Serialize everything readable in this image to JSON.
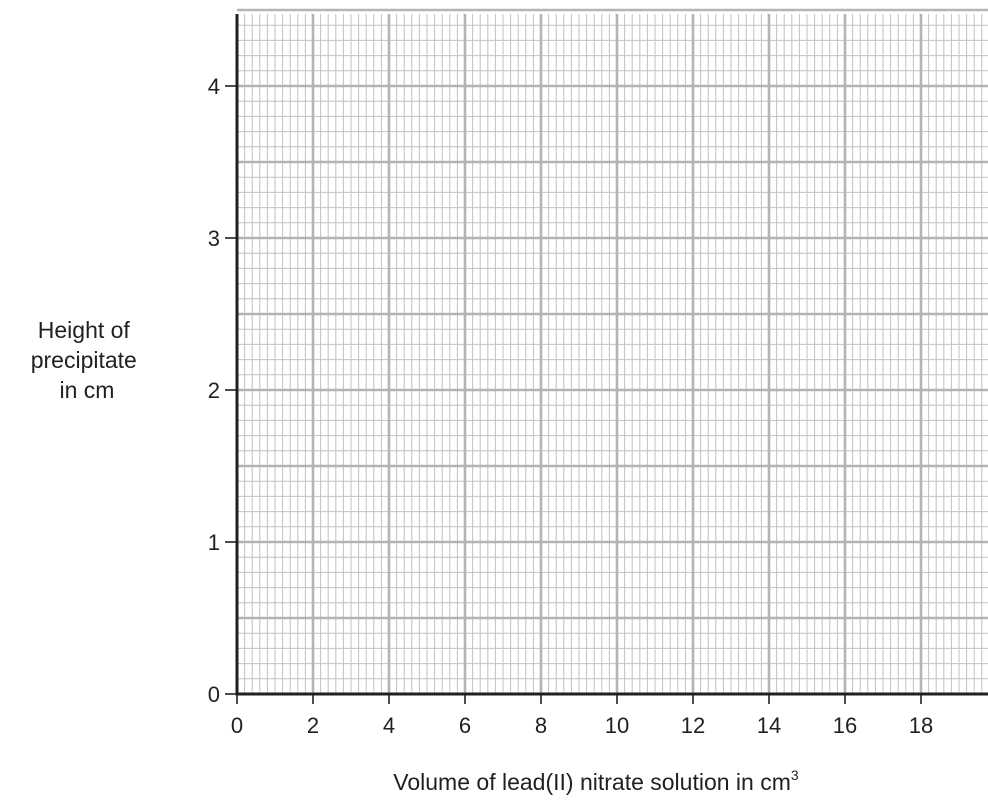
{
  "chart_data": {
    "type": "scatter",
    "grid": true,
    "x": {
      "label": "Volume of lead(II) nitrate solution in cm",
      "label_superscript": "3",
      "lim": [
        0,
        20
      ],
      "ticks": [
        "0",
        "2",
        "4",
        "6",
        "8",
        "10",
        "12",
        "14",
        "16",
        "18"
      ],
      "major_step": 2,
      "minor_per_major": 10
    },
    "y": {
      "label_lines": [
        "Height of",
        "precipitate",
        "in cm"
      ],
      "lim": [
        0,
        4.5
      ],
      "ticks": [
        "0",
        "1",
        "2",
        "3",
        "4"
      ],
      "major_step": 0.5,
      "minor_per_major": 5
    },
    "series": []
  }
}
